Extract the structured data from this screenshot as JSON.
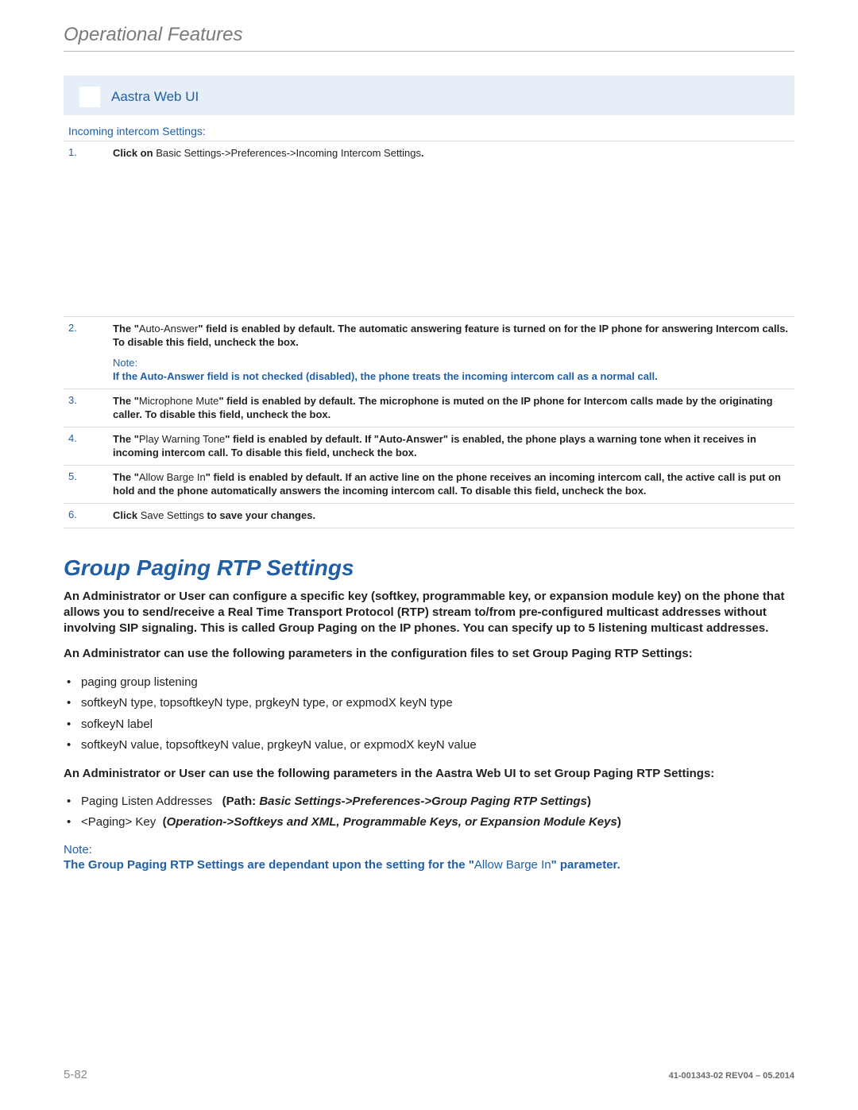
{
  "header": {
    "title": "Operational Features"
  },
  "webui": {
    "label": "Aastra Web UI"
  },
  "intercom": {
    "subhead": "Incoming intercom Settings:",
    "rows": [
      {
        "n": "1.",
        "pre": "Click on ",
        "mid": "Basic Settings->Preferences->Incoming Intercom Settings",
        "post": "."
      },
      {
        "n": "2.",
        "pre": "The \"",
        "mid": "Auto-Answer",
        "post": "\" field is enabled by default. The automatic answering feature is turned on for the IP phone for answering Intercom calls. To disable this field, uncheck the box.",
        "note_label": "Note:",
        "note_body": "If the Auto-Answer field is not checked (disabled), the phone treats the incoming intercom call as a normal call."
      },
      {
        "n": "3.",
        "pre": "The \"",
        "mid": "Microphone Mute",
        "post": "\" field is enabled by default. The microphone is muted on the IP phone for Intercom calls made by the originating caller. To disable this field, uncheck the box."
      },
      {
        "n": "4.",
        "pre": "The \"",
        "mid": "Play Warning Tone",
        "post": "\" field is enabled by default. If \"Auto-Answer\" is enabled, the phone plays a warning tone when it receives in incoming intercom call. To disable this field, uncheck the box."
      },
      {
        "n": "5.",
        "pre": "The \"",
        "mid": "Allow Barge In",
        "post": "\" field is enabled by default. If an active line on the phone receives an incoming intercom call, the active call is put on hold and the phone automatically answers the incoming intercom call. To disable this field, uncheck the box."
      },
      {
        "n": "6.",
        "pre": "Click ",
        "mid": "Save Settings",
        "post": " to save your changes."
      }
    ]
  },
  "section": {
    "title": "Group Paging RTP Settings",
    "p1_a": "An Administrator or User can configure a specific key (softkey, programmable key, or expansion module key) on the phone that allows you to send/receive a Real Time Transport Protocol (RTP) stream to/from pre-configured multicast addresses without involving SIP signaling. This is called Group Paging on the IP phones. You can specify up to 5 listening multicast addresses.",
    "p2": "An Administrator can use the following parameters in the configuration files to set Group Paging RTP Settings:",
    "bullets1": [
      "paging group listening",
      "softkeyN type, topsoftkeyN type, prgkeyN type, or expmodX keyN type",
      "sofkeyN label",
      "softkeyN value, topsoftkeyN value, prgkeyN value, or expmodX keyN value"
    ],
    "p3": "An Administrator or User can use the following parameters in the Aastra Web UI to set Group Paging RTP Settings:",
    "bullets2": [
      {
        "text": "Paging Listen Addresses",
        "path_label": "(Path: ",
        "path": "Basic Settings->Preferences->Group Paging RTP Settings",
        "close": ")"
      },
      {
        "text": "<Paging> Key",
        "path_label": "(",
        "path": "Operation->Softkeys and XML, Programmable Keys, or Expansion Module Keys",
        "close": ")"
      }
    ],
    "note_label": "Note:",
    "note_a": "The Group Paging RTP Settings are dependant upon the setting for the \"",
    "note_mid": "Allow Barge In",
    "note_b": "\" parameter."
  },
  "footer": {
    "page": "5-82",
    "rev": "41-001343-02 REV04 – 05.2014"
  }
}
